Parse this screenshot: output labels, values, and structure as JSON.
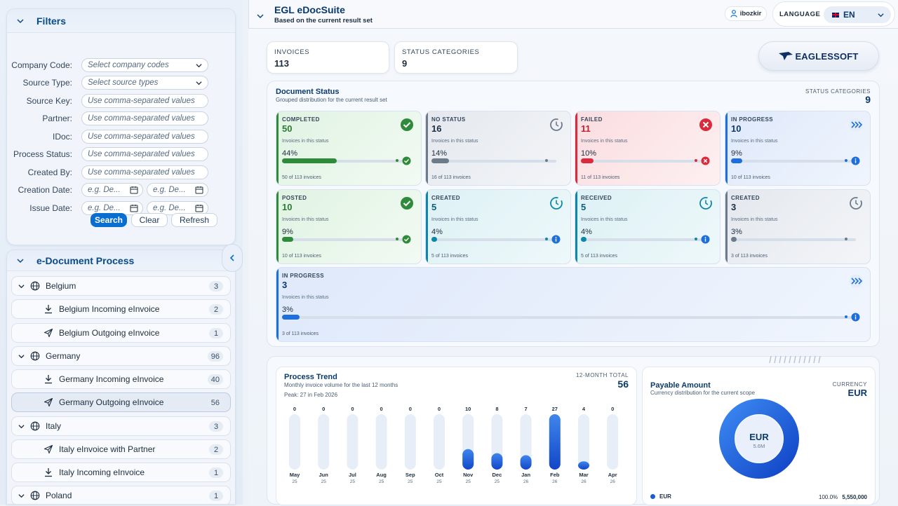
{
  "filters": {
    "title": "Filters",
    "fields": [
      {
        "label": "Company Code:",
        "placeholder": "Select company codes",
        "type": "select"
      },
      {
        "label": "Source Type:",
        "placeholder": "Select source types",
        "type": "select"
      },
      {
        "label": "Source Key:",
        "placeholder": "Use comma-separated values",
        "type": "text"
      },
      {
        "label": "Partner:",
        "placeholder": "Use comma-separated values",
        "type": "text"
      },
      {
        "label": "IDoc:",
        "placeholder": "Use comma-separated values",
        "type": "text"
      },
      {
        "label": "Process Status:",
        "placeholder": "Use comma-separated values",
        "type": "text"
      },
      {
        "label": "Created By:",
        "placeholder": "Use comma-separated values",
        "type": "text"
      }
    ],
    "dates": [
      {
        "label": "Creation Date:",
        "from": "e.g. De...",
        "to": "e.g. De..."
      },
      {
        "label": "Issue Date:",
        "from": "e.g. De...",
        "to": "e.g. De..."
      }
    ],
    "search_label": "Search",
    "clear_label": "Clear",
    "refresh_label": "Refresh"
  },
  "process": {
    "title": "e-Document Process",
    "items": [
      {
        "label": "Belgium",
        "count": "3",
        "level": 0,
        "icon": "globe-icon"
      },
      {
        "label": "Belgium Incoming eInvoice",
        "count": "2",
        "level": 1,
        "icon": "download-icon"
      },
      {
        "label": "Belgium Outgoing eInvoice",
        "count": "1",
        "level": 1,
        "icon": "send-icon"
      },
      {
        "label": "Germany",
        "count": "96",
        "level": 0,
        "icon": "globe-icon"
      },
      {
        "label": "Germany Incoming eInvoice",
        "count": "40",
        "level": 1,
        "icon": "download-icon"
      },
      {
        "label": "Germany Outgoing eInvoice",
        "count": "56",
        "level": 1,
        "icon": "send-icon",
        "selected": true
      },
      {
        "label": "Italy",
        "count": "3",
        "level": 0,
        "icon": "globe-icon"
      },
      {
        "label": "Italy eInvoice with Partner",
        "count": "2",
        "level": 1,
        "icon": "send-icon"
      },
      {
        "label": "Italy Incoming eInvoice",
        "count": "1",
        "level": 1,
        "icon": "download-icon"
      },
      {
        "label": "Poland",
        "count": "1",
        "level": 0,
        "icon": "globe-icon"
      }
    ]
  },
  "header": {
    "title": "EGL eDocSuite",
    "subtitle": "Based on the current result set",
    "user": "ibozkir",
    "language_label": "LANGUAGE",
    "language_value": "EN"
  },
  "kpis": {
    "invoices_label": "INVOICES",
    "invoices_value": "113",
    "categories_label": "STATUS CATEGORIES",
    "categories_value": "9"
  },
  "logo_text": "EAGLESSOFT",
  "doc_status": {
    "title": "Document Status",
    "subtitle": "Grouped distribution for the current result set",
    "right_label": "STATUS CATEGORIES",
    "right_value": "9",
    "sub_label": "Invoices in this status",
    "cards": [
      {
        "label": "COMPLETED",
        "value": "50",
        "pct": "44%",
        "pct_num": 44,
        "footer": "50 of 113 invoices",
        "kind": "ok"
      },
      {
        "label": "NO STATUS",
        "value": "16",
        "pct": "14%",
        "pct_num": 14,
        "footer": "16 of 113 invoices",
        "kind": "neutral"
      },
      {
        "label": "FAILED",
        "value": "11",
        "pct": "10%",
        "pct_num": 10,
        "footer": "11 of 113 invoices",
        "kind": "err"
      },
      {
        "label": "IN PROGRESS",
        "value": "10",
        "pct": "9%",
        "pct_num": 9,
        "footer": "10 of 113 invoices",
        "kind": "prog"
      },
      {
        "label": "POSTED",
        "value": "10",
        "pct": "9%",
        "pct_num": 9,
        "footer": "10 of 113 invoices",
        "kind": "ok"
      },
      {
        "label": "CREATED",
        "value": "5",
        "pct": "4%",
        "pct_num": 4,
        "footer": "5 of 113 invoices",
        "kind": "teal"
      },
      {
        "label": "RECEIVED",
        "value": "5",
        "pct": "4%",
        "pct_num": 4,
        "footer": "5 of 113 invoices",
        "kind": "teal"
      },
      {
        "label": "CREATED",
        "value": "3",
        "pct": "3%",
        "pct_num": 3,
        "footer": "3 of 113 invoices",
        "kind": "neutral"
      },
      {
        "label": "IN PROGRESS",
        "value": "3",
        "pct": "3%",
        "pct_num": 3,
        "footer": "3 of 113 invoices",
        "kind": "prog"
      }
    ]
  },
  "trend": {
    "title": "Process Trend",
    "subtitle": "Monthly invoice volume for the last 12 months",
    "peak": "Peak: 27 in Feb 2026",
    "total_label": "12-MONTH TOTAL",
    "total_value": "56"
  },
  "payable": {
    "title": "Payable Amount",
    "subtitle": "Currency distribution for the current scope",
    "currency_label": "CURRENCY",
    "currency_value": "EUR",
    "donut_label": "EUR",
    "donut_sub": "5.6M",
    "legend_name": "EUR",
    "legend_pct": "100.0%",
    "legend_amount": "5,550,000"
  },
  "colors": {
    "ok": "#2e8b3a",
    "err": "#d92b3c",
    "prog": "#1e6fd9",
    "teal": "#0b88a8",
    "neutral": "#6c7a8a",
    "bar_fill": "#1a5fd0"
  },
  "chart_data": {
    "type": "bar",
    "categories": [
      "May 25",
      "Jun 25",
      "Jul 25",
      "Aug 25",
      "Sep 25",
      "Oct 25",
      "Nov 25",
      "Dec 25",
      "Jan 26",
      "Feb 26",
      "Mar 26",
      "Apr 26"
    ],
    "months": [
      "May",
      "Jun",
      "Jul",
      "Aug",
      "Sep",
      "Oct",
      "Nov",
      "Dec",
      "Jan",
      "Feb",
      "Mar",
      "Apr"
    ],
    "years": [
      "25",
      "25",
      "25",
      "25",
      "25",
      "25",
      "25",
      "25",
      "26",
      "26",
      "26",
      "26"
    ],
    "values": [
      0,
      0,
      0,
      0,
      0,
      0,
      10,
      8,
      7,
      27,
      4,
      0
    ],
    "ylim": [
      0,
      27
    ]
  }
}
